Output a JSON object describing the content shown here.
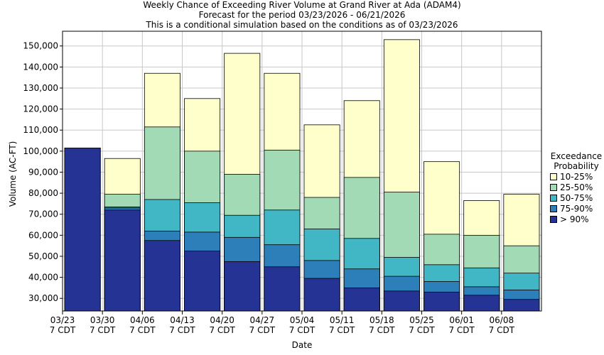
{
  "chart_data": {
    "type": "bar",
    "title": "Weekly Chance of Exceeding River Volume at Grand River at Ada (ADAM4)",
    "subtitle": "Forecast for the period 03/23/2026 - 06/21/2026",
    "subtitle2": "This is a conditional simulation based on the conditions as of 03/23/2026",
    "xlabel": "Date",
    "ylabel": "Volume (AC-FT)",
    "ylim": [
      24000,
      157000
    ],
    "yticks": [
      30000,
      40000,
      50000,
      60000,
      70000,
      80000,
      90000,
      100000,
      110000,
      120000,
      130000,
      140000,
      150000
    ],
    "ytick_labels": [
      "30,000",
      "40,000",
      "50,000",
      "60,000",
      "70,000",
      "80,000",
      "90,000",
      "100,000",
      "110,000",
      "120,000",
      "130,000",
      "140,000",
      "150,000"
    ],
    "xtick_labels": [
      {
        "date": "03/23",
        "tz": "7 CDT"
      },
      {
        "date": "03/30",
        "tz": "7 CDT"
      },
      {
        "date": "04/06",
        "tz": "7 CDT"
      },
      {
        "date": "04/13",
        "tz": "7 CDT"
      },
      {
        "date": "04/20",
        "tz": "7 CDT"
      },
      {
        "date": "04/27",
        "tz": "7 CDT"
      },
      {
        "date": "05/04",
        "tz": "7 CDT"
      },
      {
        "date": "05/11",
        "tz": "7 CDT"
      },
      {
        "date": "05/18",
        "tz": "7 CDT"
      },
      {
        "date": "05/25",
        "tz": "7 CDT"
      },
      {
        "date": "06/01",
        "tz": "7 CDT"
      },
      {
        "date": "06/08",
        "tz": "7 CDT"
      }
    ],
    "grid": true,
    "legend_title": "Exceedance Probability",
    "legend_placement": "right",
    "series": [
      {
        "name": "10-25%",
        "color": "#ffffcc",
        "values": [
          101500,
          96500,
          137000,
          125000,
          146500,
          137000,
          112500,
          124000,
          153000,
          95000,
          76500,
          79500
        ]
      },
      {
        "name": "25-50%",
        "color": "#a1dab4",
        "values": [
          101500,
          79500,
          111500,
          100000,
          89000,
          100500,
          78000,
          87500,
          80500,
          60500,
          60000,
          55000
        ]
      },
      {
        "name": "50-75%",
        "color": "#41b6c4",
        "values": [
          101500,
          73500,
          77000,
          75500,
          69500,
          72000,
          63000,
          58500,
          49500,
          46000,
          44500,
          42000
        ]
      },
      {
        "name": "75-90%",
        "color": "#2c7fb8",
        "values": [
          101500,
          73000,
          62000,
          61500,
          59000,
          55500,
          48000,
          44000,
          40500,
          38000,
          35500,
          34000
        ]
      },
      {
        "name": "> 90%",
        "color": "#253494",
        "values": [
          101500,
          72000,
          57500,
          52500,
          47500,
          45000,
          39500,
          35000,
          33500,
          33000,
          31500,
          29500
        ]
      }
    ]
  }
}
